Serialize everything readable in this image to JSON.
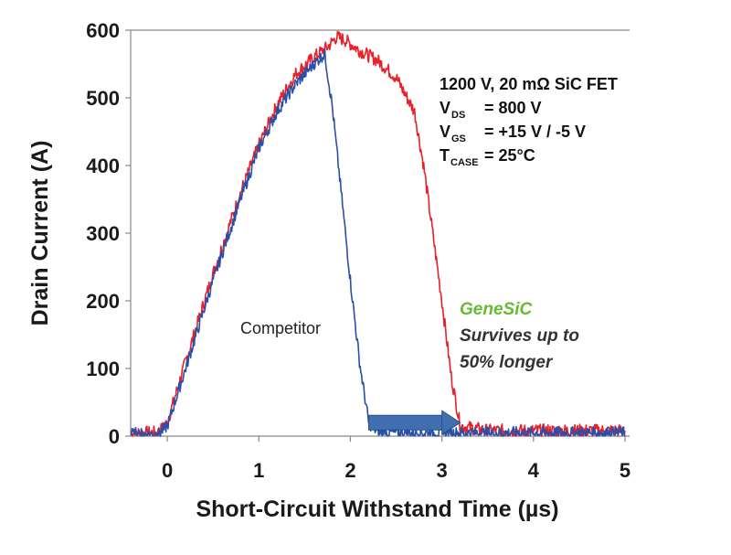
{
  "chart_data": {
    "type": "line",
    "xlabel": "Short-Circuit Withstand Time (µs)",
    "ylabel": "Drain Current (A)",
    "xlim": [
      -0.4,
      5.05
    ],
    "ylim": [
      0,
      600
    ],
    "x_ticks": [
      "0",
      "1",
      "2",
      "3",
      "4",
      "5"
    ],
    "y_ticks": [
      "0",
      "100",
      "200",
      "300",
      "400",
      "500",
      "600"
    ],
    "grid": false,
    "series": [
      {
        "color": "#e8202a",
        "noise": 10,
        "x": [
          -0.4,
          -0.1,
          0.0,
          0.2,
          0.5,
          0.8,
          1.0,
          1.2,
          1.4,
          1.6,
          1.75,
          1.85,
          1.95,
          2.1,
          2.3,
          2.5,
          2.7,
          2.8,
          2.9,
          3.0,
          3.1,
          3.2,
          3.5,
          4.0,
          4.5,
          5.0
        ],
        "y": [
          5,
          5,
          20,
          110,
          240,
          360,
          430,
          490,
          535,
          560,
          575,
          590,
          585,
          570,
          555,
          530,
          480,
          400,
          300,
          200,
          90,
          15,
          8,
          8,
          8,
          8
        ]
      },
      {
        "color": "#2a4fa8",
        "noise": 9,
        "x": [
          -0.4,
          -0.1,
          0.0,
          0.2,
          0.5,
          0.8,
          1.0,
          1.2,
          1.4,
          1.6,
          1.72,
          1.8,
          1.9,
          2.0,
          2.1,
          2.2,
          2.3,
          2.5,
          3.0,
          3.5,
          4.0,
          4.5,
          5.0
        ],
        "y": [
          3,
          3,
          15,
          100,
          230,
          350,
          425,
          480,
          520,
          550,
          565,
          490,
          360,
          230,
          110,
          20,
          5,
          5,
          5,
          5,
          5,
          5,
          5
        ]
      }
    ],
    "annotations": {
      "device": "1200 V, 20 mΩ SiC FET",
      "vds_symbol": "V",
      "vds_sub": "DS",
      "vds_value": "= 800 V",
      "vgs_symbol": "V",
      "vgs_sub": "GS",
      "vgs_value": "= +15 V / -5 V",
      "tcase_symbol": "T",
      "tcase_sub": "CASE",
      "tcase_value": "= 25°C",
      "competitor_label": "Competitor",
      "genesic_label": "GeneSiC",
      "survive_line1": "Survives up to",
      "survive_line2": "50% longer",
      "genesic_color": "#66bb33",
      "arrow_color": "#3f6fb0",
      "arrow_from_x": 2.2,
      "arrow_to_x": 3.2,
      "arrow_y": 20
    }
  }
}
